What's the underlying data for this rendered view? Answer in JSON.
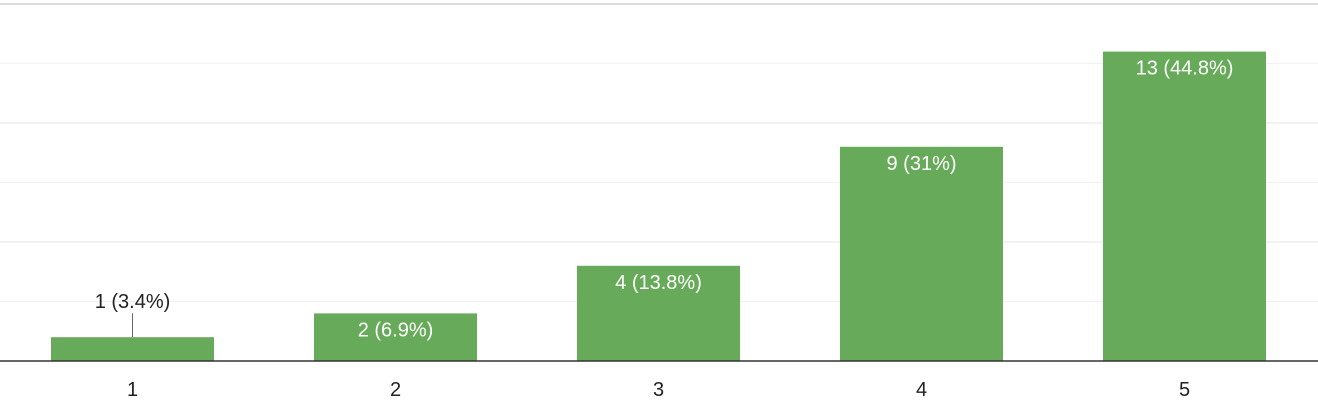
{
  "chart_data": {
    "type": "bar",
    "categories": [
      "1",
      "2",
      "3",
      "4",
      "5"
    ],
    "values": [
      1,
      2,
      4,
      9,
      13
    ],
    "data_labels": [
      "1 (3.4%)",
      "2 (6.9%)",
      "4 (13.8%)",
      "9 (31%)",
      "13 (44.8%)"
    ],
    "ylim": [
      0,
      15
    ],
    "grid": true,
    "legend": "none",
    "colors": {
      "bar": "#66aa5a"
    }
  }
}
